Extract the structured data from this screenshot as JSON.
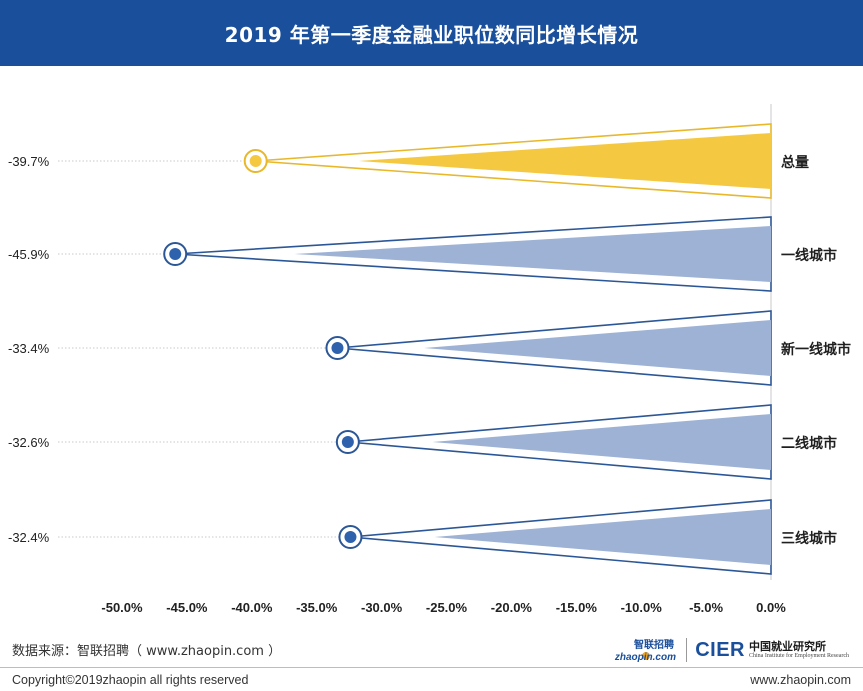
{
  "header": {
    "title": "2019 年第一季度金融业职位数同比增长情况"
  },
  "chart_data": {
    "type": "bar",
    "title": "2019 年第一季度金融业职位数同比增长情况",
    "orientation": "horizontal",
    "categories": [
      "总量",
      "一线城市",
      "新一线城市",
      "二线城市",
      "三线城市"
    ],
    "values": [
      -39.7,
      -45.9,
      -33.4,
      -32.6,
      -32.4
    ],
    "value_labels": [
      "-39.7%",
      "-45.9%",
      "-33.4%",
      "-32.6%",
      "-32.4%"
    ],
    "x_ticks": [
      "-50.0%",
      "-45.0%",
      "-40.0%",
      "-35.0%",
      "-30.0%",
      "-25.0%",
      "-20.0%",
      "-15.0%",
      "-10.0%",
      "-5.0%",
      "0.0%"
    ],
    "xlim": [
      -50,
      0
    ],
    "colors": {
      "highlight": "#f5c842",
      "highlight_stroke": "#e8b82a",
      "series": "#9db2d4",
      "series_stroke": "#2c5797",
      "marker": "#2f62ad"
    },
    "highlight_category": "总量",
    "grid": false
  },
  "source": {
    "text": "数据来源：智联招聘（ www.zhaopin.com ）"
  },
  "logos": {
    "zhaopin_cn": "智联招聘",
    "zhaopin_en": "zhaopin.com",
    "cier": "CIER",
    "cier_cn": "中国就业研究所",
    "cier_en": "China Institute for Employment Research"
  },
  "footer": {
    "copyright": "Copyright©2019zhaopin all rights reserved",
    "url": "www.zhaopin.com"
  }
}
